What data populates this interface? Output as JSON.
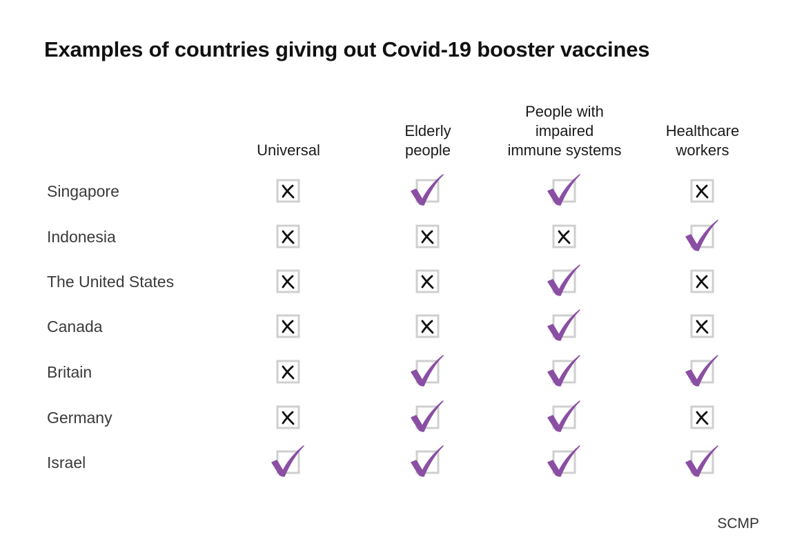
{
  "title": "Examples of countries giving out Covid-19 booster vaccines",
  "source": "SCMP",
  "colors": {
    "check": "#8a4fa3",
    "box": "#cfcfcf",
    "cross": "#111111"
  },
  "chart_data": {
    "type": "table",
    "title": "Examples of countries giving out Covid-19 booster vaccines",
    "columns": [
      {
        "id": "universal",
        "lines": [
          "Universal"
        ]
      },
      {
        "id": "elderly",
        "lines": [
          "Elderly",
          "people"
        ]
      },
      {
        "id": "impaired",
        "lines": [
          "People with",
          "impaired",
          "immune systems"
        ]
      },
      {
        "id": "healthcare",
        "lines": [
          "Healthcare",
          "workers"
        ]
      }
    ],
    "rows": [
      {
        "country": "Singapore",
        "values": [
          false,
          true,
          true,
          false
        ]
      },
      {
        "country": "Indonesia",
        "values": [
          false,
          false,
          false,
          true
        ]
      },
      {
        "country": "The United States",
        "values": [
          false,
          false,
          true,
          false
        ]
      },
      {
        "country": "Canada",
        "values": [
          false,
          false,
          true,
          false
        ]
      },
      {
        "country": "Britain",
        "values": [
          false,
          true,
          true,
          true
        ]
      },
      {
        "country": "Germany",
        "values": [
          false,
          true,
          true,
          false
        ]
      },
      {
        "country": "Israel",
        "values": [
          true,
          true,
          true,
          true
        ]
      }
    ]
  }
}
